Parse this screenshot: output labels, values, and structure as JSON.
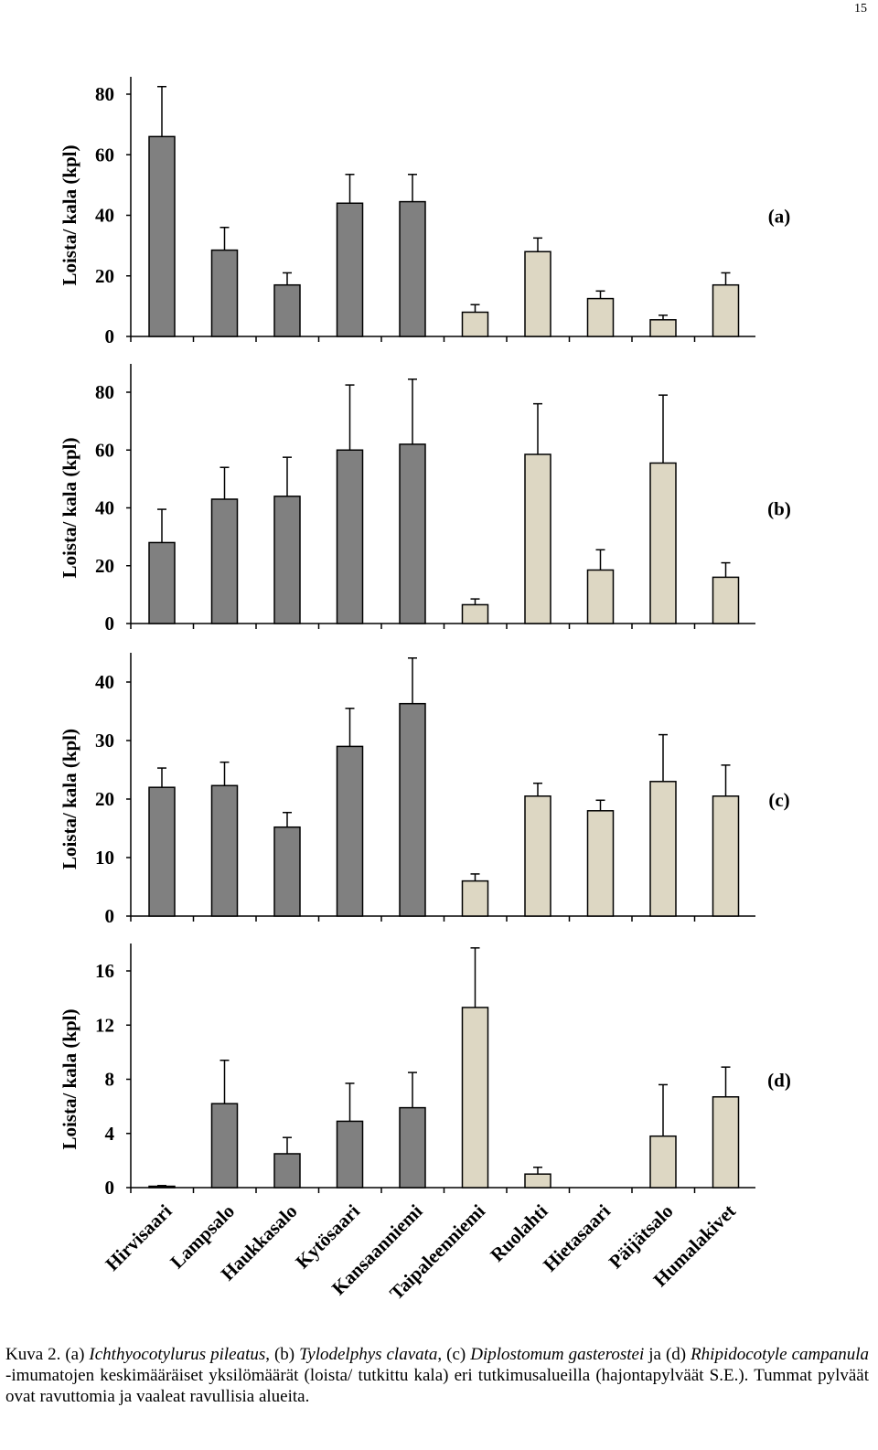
{
  "page_number": "15",
  "caption": {
    "p1": "Kuva 2. (a) ",
    "sp_a": "Ichthyocotylurus pileatus",
    "p2": ", (b) ",
    "sp_b": "Tylodelphys clavata",
    "p3": ", (c) ",
    "sp_c": "Diplostomum gasterostei",
    "p4": " ja (d) ",
    "sp_d": "Rhipidocotyle campanula",
    "p5": " -imumatojen keskimääräiset yksilömäärät (loista/ tutkittu kala) eri tutkimusalueilla (hajontapylväät S.E.). Tummat pylväät ovat ravuttomia ja vaaleat ravullisia alueita."
  },
  "colors": {
    "dark_bar": "#808080",
    "light_bar": "#ddd7c3",
    "axis": "#000000"
  },
  "chart_data": [
    {
      "type": "bar",
      "panel_label": "(a)",
      "ylabel": "Loista/ kala (kpl)",
      "ylim": [
        0,
        80
      ],
      "yticks": [
        0,
        20,
        40,
        60,
        80
      ],
      "categories": [
        "Hirvisaari",
        "Lampsalo",
        "Haukkasalo",
        "Kytösaari",
        "Kansaanniemi",
        "Taipaleenniemi",
        "Ruolahti",
        "Hietasaari",
        "Päijätsalo",
        "Humalakivet"
      ],
      "values": [
        66,
        28.5,
        17,
        44,
        44.5,
        8,
        28,
        12.5,
        5.5,
        17
      ],
      "errors": [
        16.5,
        7.5,
        4,
        9.5,
        9,
        2.5,
        4.5,
        2.5,
        1.5,
        4
      ],
      "shade": [
        "dark",
        "dark",
        "dark",
        "dark",
        "dark",
        "light",
        "light",
        "light",
        "light",
        "light"
      ]
    },
    {
      "type": "bar",
      "panel_label": "(b)",
      "ylabel": "Loista/ kala (kpl)",
      "ylim": [
        0,
        80
      ],
      "yticks": [
        0,
        20,
        40,
        60,
        80
      ],
      "categories": [
        "Hirvisaari",
        "Lampsalo",
        "Haukkasalo",
        "Kytösaari",
        "Kansaanniemi",
        "Taipaleenniemi",
        "Ruolahti",
        "Hietasaari",
        "Päijätsalo",
        "Humalakivet"
      ],
      "values": [
        28,
        43,
        44,
        60,
        62,
        6.5,
        58.5,
        18.5,
        55.5,
        16
      ],
      "errors": [
        11.5,
        11,
        13.5,
        22.5,
        22.5,
        2,
        17.5,
        7,
        23.5,
        5
      ],
      "shade": [
        "dark",
        "dark",
        "dark",
        "dark",
        "dark",
        "light",
        "light",
        "light",
        "light",
        "light"
      ]
    },
    {
      "type": "bar",
      "panel_label": "(c)",
      "ylabel": "Loista/ kala (kpl)",
      "ylim": [
        0,
        40
      ],
      "yticks": [
        0,
        10,
        20,
        30,
        40
      ],
      "categories": [
        "Hirvisaari",
        "Lampsalo",
        "Haukkasalo",
        "Kytösaari",
        "Kansaanniemi",
        "Taipaleenniemi",
        "Ruolahti",
        "Hietasaari",
        "Päijätsalo",
        "Humalakivet"
      ],
      "values": [
        22,
        22.3,
        15.2,
        29,
        36.3,
        6,
        20.5,
        18,
        23,
        20.5
      ],
      "errors": [
        3.3,
        4,
        2.5,
        6.5,
        7.8,
        1.2,
        2.2,
        1.8,
        8,
        5.3
      ],
      "shade": [
        "dark",
        "dark",
        "dark",
        "dark",
        "dark",
        "light",
        "light",
        "light",
        "light",
        "light"
      ]
    },
    {
      "type": "bar",
      "panel_label": "(d)",
      "ylabel": "Loista/ kala (kpl)",
      "ylim": [
        0,
        16
      ],
      "yticks": [
        0,
        4,
        8,
        12,
        16
      ],
      "categories": [
        "Hirvisaari",
        "Lampsalo",
        "Haukkasalo",
        "Kytösaari",
        "Kansaanniemi",
        "Taipaleenniemi",
        "Ruolahti",
        "Hietasaari",
        "Päijätsalo",
        "Humalakivet"
      ],
      "values": [
        0.1,
        6.2,
        2.5,
        4.9,
        5.9,
        13.3,
        1,
        0,
        3.8,
        6.7
      ],
      "errors": [
        0.05,
        3.2,
        1.2,
        2.8,
        2.6,
        4.4,
        0.5,
        0,
        3.8,
        2.2
      ],
      "shade": [
        "dark",
        "dark",
        "dark",
        "dark",
        "dark",
        "light",
        "light",
        "light",
        "light",
        "light"
      ]
    }
  ]
}
